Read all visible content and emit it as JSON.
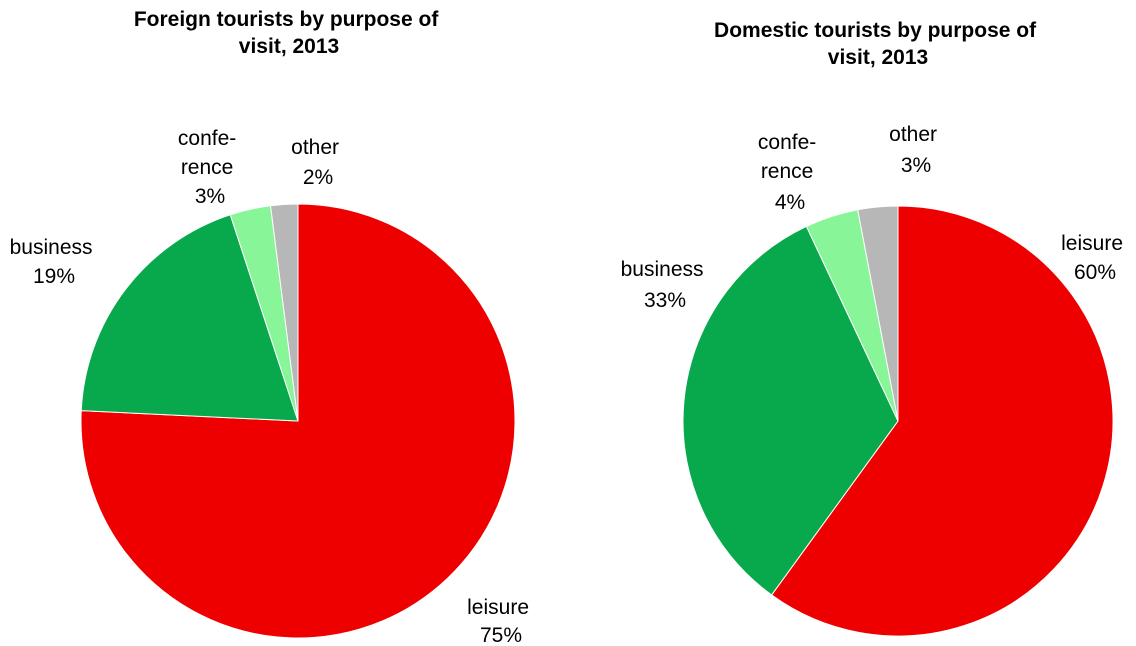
{
  "chart_data": [
    {
      "type": "pie",
      "title_lines": [
        "Foreign tourists by purpose of",
        "visit,  2013"
      ],
      "slices": [
        {
          "label_lines": [
            "leisure"
          ],
          "value": 75,
          "value_label": "75%",
          "color": "#ee0000"
        },
        {
          "label_lines": [
            "business"
          ],
          "value": 19,
          "value_label": "19%",
          "color": "#08a84c"
        },
        {
          "label_lines": [
            "confe-",
            "rence"
          ],
          "value": 3,
          "value_label": "3%",
          "color": "#88f598"
        },
        {
          "label_lines": [
            "other"
          ],
          "value": 2,
          "value_label": "2%",
          "color": "#b7b7b7"
        }
      ]
    },
    {
      "type": "pie",
      "title_lines": [
        "Domestic tourists by purpose of",
        "visit,  2013"
      ],
      "slices": [
        {
          "label_lines": [
            "leisure"
          ],
          "value": 60,
          "value_label": "60%",
          "color": "#ee0000"
        },
        {
          "label_lines": [
            "business"
          ],
          "value": 33,
          "value_label": "33%",
          "color": "#08a84c"
        },
        {
          "label_lines": [
            "confe-",
            "rence"
          ],
          "value": 4,
          "value_label": "4%",
          "color": "#88f598"
        },
        {
          "label_lines": [
            "other"
          ],
          "value": 3,
          "value_label": "3%",
          "color": "#b7b7b7"
        }
      ]
    }
  ]
}
